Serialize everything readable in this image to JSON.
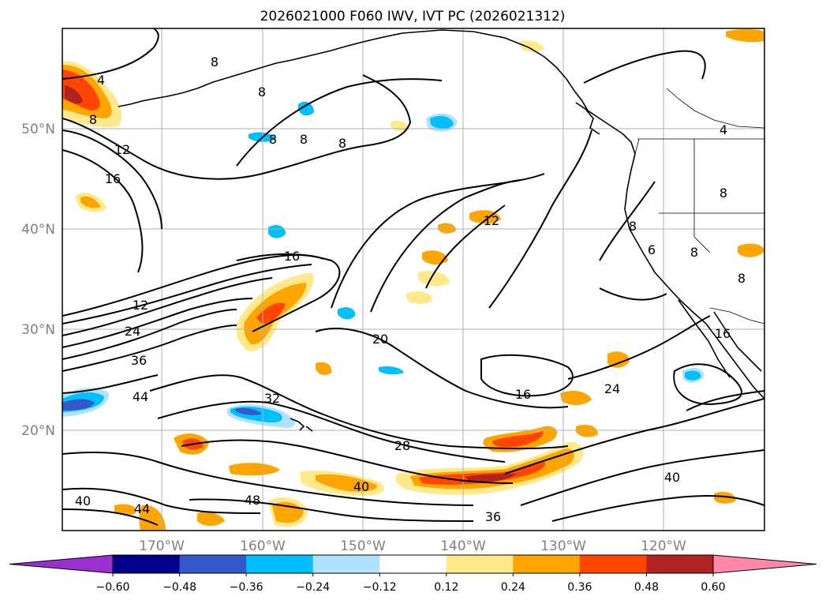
{
  "title": "2026021000 F060 IWV, IVT PC (2026021312)",
  "map": {
    "lat_labels": [
      "50°N",
      "40°N",
      "30°N",
      "20°N"
    ],
    "lon_labels": [
      "170°W",
      "160°W",
      "150°W",
      "140°W",
      "130°W",
      "120°W"
    ],
    "grid": true,
    "extent": {
      "lon": [
        -180,
        -110
      ],
      "lat": [
        10,
        60
      ]
    }
  },
  "contour_labels": [
    "4",
    "8",
    "8",
    "8",
    "8",
    "8",
    "8",
    "12",
    "16",
    "16",
    "12",
    "24",
    "36",
    "44",
    "32",
    "20",
    "28",
    "16",
    "24",
    "40",
    "48",
    "40",
    "44",
    "40",
    "36",
    "4",
    "8",
    "8",
    "6",
    "8",
    "8",
    "12",
    "16"
  ],
  "colorbar": {
    "ticks": [
      "−0.60",
      "−0.48",
      "−0.36",
      "−0.24",
      "−0.12",
      "0.12",
      "0.24",
      "0.36",
      "0.48",
      "0.60"
    ],
    "colors": [
      "#9b30d0",
      "#00008b",
      "#3358cc",
      "#00bfff",
      "#b0e2ff",
      "#ffffff",
      "#ffe98a",
      "#ffa500",
      "#ff4500",
      "#b22222",
      "#ff88aa"
    ],
    "extend": "both"
  }
}
